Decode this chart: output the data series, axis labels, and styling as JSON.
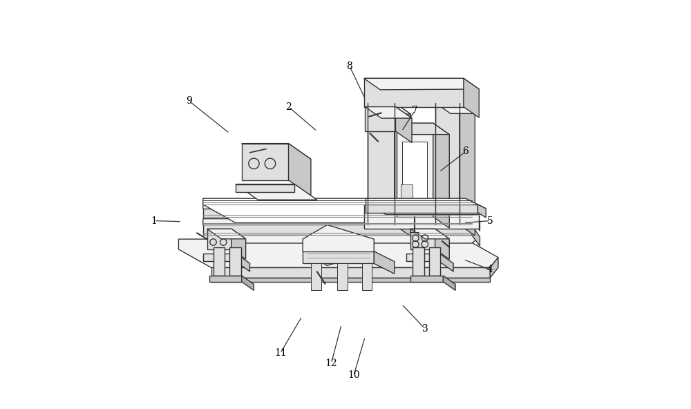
{
  "bg_color": "#ffffff",
  "line_color": "#333333",
  "lw": 1.0,
  "fig_width": 10.0,
  "fig_height": 5.92,
  "label_data": {
    "1": {
      "lxy": [
        0.03,
        0.46
      ],
      "axy": [
        0.098,
        0.458
      ]
    },
    "2": {
      "lxy": [
        0.36,
        0.74
      ],
      "axy": [
        0.43,
        0.68
      ]
    },
    "3": {
      "lxy": [
        0.695,
        0.195
      ],
      "axy": [
        0.638,
        0.255
      ]
    },
    "4": {
      "lxy": [
        0.855,
        0.34
      ],
      "axy": [
        0.79,
        0.365
      ]
    },
    "5": {
      "lxy": [
        0.855,
        0.46
      ],
      "axy": [
        0.79,
        0.455
      ]
    },
    "6": {
      "lxy": [
        0.795,
        0.63
      ],
      "axy": [
        0.73,
        0.58
      ]
    },
    "7": {
      "lxy": [
        0.67,
        0.73
      ],
      "axy": [
        0.638,
        0.68
      ]
    },
    "8": {
      "lxy": [
        0.51,
        0.84
      ],
      "axy": [
        0.548,
        0.76
      ]
    },
    "9": {
      "lxy": [
        0.115,
        0.755
      ],
      "axy": [
        0.215,
        0.675
      ]
    },
    "10": {
      "lxy": [
        0.52,
        0.08
      ],
      "axy": [
        0.548,
        0.175
      ]
    },
    "11": {
      "lxy": [
        0.34,
        0.135
      ],
      "axy": [
        0.393,
        0.225
      ]
    },
    "12": {
      "lxy": [
        0.465,
        0.11
      ],
      "axy": [
        0.49,
        0.205
      ]
    }
  }
}
